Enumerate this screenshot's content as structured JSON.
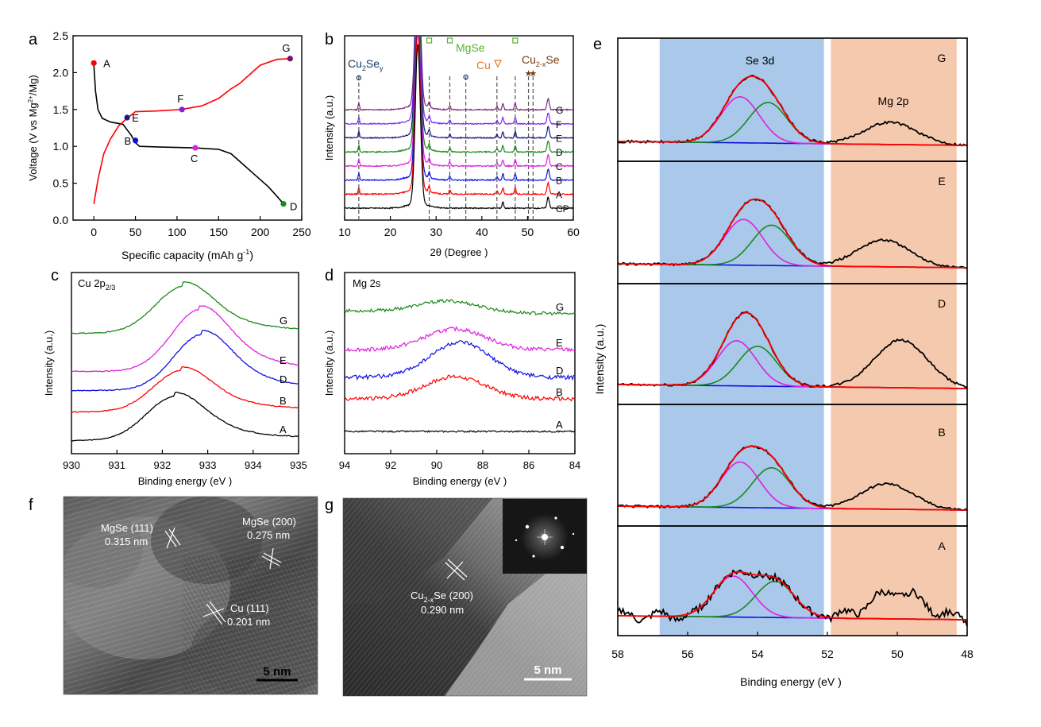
{
  "panels": {
    "a": {
      "letter": "a",
      "xlabel": "Specific capacity  (mAh g",
      "xlabel_sup": "-1",
      "xlabel_end": ")",
      "ylabel": "Voltage  (V vs Mg",
      "ylabel_sup": "2+",
      "ylabel_end": "/Mg)",
      "xticks": [
        "0",
        "50",
        "100",
        "150",
        "200",
        "250"
      ],
      "yticks": [
        "0.0",
        "0.5",
        "1.0",
        "1.5",
        "2.0",
        "2.5"
      ]
    },
    "b": {
      "letter": "b",
      "xlabel": "2θ (Degree )",
      "ylabel": "Intensity  (a.u.)",
      "xticks": [
        "10",
        "20",
        "30",
        "40",
        "50",
        "60"
      ],
      "label_cu2sey_main": "Cu",
      "label_cu2sey_sub1": "2",
      "label_cu2sey_mid": "Se",
      "label_cu2sey_sub2": "y",
      "label_mgse": "MgSe",
      "label_cu": "Cu",
      "label_cu2xse_main": "Cu",
      "label_cu2xse_sub": "2-x",
      "label_cu2xse_end": "Se",
      "trace_labels": [
        "G",
        "F",
        "E",
        "D",
        "C",
        "B",
        "A",
        "CP"
      ]
    },
    "c": {
      "letter": "c",
      "title_main": "Cu 2p",
      "title_sub": "2/3",
      "xlabel": "Binding energy (eV )",
      "ylabel": "Intensity  (a.u.)",
      "xticks": [
        "930",
        "931",
        "932",
        "933",
        "934",
        "935"
      ],
      "trace_labels": [
        "G",
        "E",
        "D",
        "B",
        "A"
      ]
    },
    "d": {
      "letter": "d",
      "title": "Mg 2s",
      "xlabel": "Binding energy (eV )",
      "ylabel": "Intensity  (a.u.)",
      "xticks": [
        "94",
        "92",
        "90",
        "88",
        "86",
        "84"
      ],
      "trace_labels": [
        "G",
        "E",
        "D",
        "B",
        "A"
      ]
    },
    "e": {
      "letter": "e",
      "xlabel": "Binding energy (eV )",
      "ylabel": "Intensity  (a.u.)",
      "xticks": [
        "58",
        "56",
        "54",
        "52",
        "50",
        "48"
      ],
      "region_se": "Se 3d",
      "region_mg": "Mg 2p",
      "subpanel_labels": [
        "G",
        "E",
        "D",
        "B",
        "A"
      ]
    },
    "f": {
      "letter": "f",
      "ann1_l1": "MgSe (111)",
      "ann1_l2": "0.315 nm",
      "ann2_l1": "MgSe (200)",
      "ann2_l2": "0.275 nm",
      "ann3_l1": "Cu (111)",
      "ann3_l2": "0.201 nm",
      "scale": "5 nm"
    },
    "g": {
      "letter": "g",
      "ann_main": "Cu",
      "ann_sub": "2-x",
      "ann_end": "Se (200)",
      "ann_l2": "0.290 nm",
      "scale": "5 nm"
    }
  },
  "chart_data": [
    {
      "panel": "a",
      "type": "line",
      "xlabel": "Specific capacity  (mAh g-1)",
      "ylabel": "Voltage  (V vs Mg2+/Mg)",
      "xlim": [
        -25,
        250
      ],
      "ylim": [
        0.0,
        2.5
      ],
      "series": [
        {
          "color": "#000000",
          "x": [
            0,
            2,
            5,
            10,
            20,
            35,
            45,
            50,
            55,
            80,
            120,
            150,
            165,
            180,
            195,
            210,
            222,
            228
          ],
          "y": [
            2.1,
            1.75,
            1.5,
            1.38,
            1.33,
            1.3,
            1.15,
            1.05,
            1.0,
            0.99,
            0.98,
            0.96,
            0.9,
            0.75,
            0.6,
            0.45,
            0.3,
            0.22
          ]
        },
        {
          "color": "#ff0000",
          "x": [
            0,
            5,
            12,
            20,
            30,
            40,
            50,
            75,
            105,
            130,
            150,
            165,
            175,
            190,
            200,
            220,
            236
          ],
          "y": [
            0.22,
            0.55,
            0.9,
            1.1,
            1.28,
            1.38,
            1.47,
            1.48,
            1.5,
            1.55,
            1.65,
            1.78,
            1.85,
            2.0,
            2.1,
            2.18,
            2.19
          ]
        }
      ],
      "points": [
        {
          "label": "A",
          "x": 0,
          "y": 2.13,
          "color": "#ff0000"
        },
        {
          "label": "B",
          "x": 50,
          "y": 1.08,
          "color": "#1010d0"
        },
        {
          "label": "C",
          "x": 122,
          "y": 0.98,
          "color": "#e020e0"
        },
        {
          "label": "D",
          "x": 228,
          "y": 0.22,
          "color": "#1a8a1a"
        },
        {
          "label": "E",
          "x": 40,
          "y": 1.39,
          "color": "#1a1a80"
        },
        {
          "label": "F",
          "x": 106,
          "y": 1.5,
          "color": "#8020e0"
        },
        {
          "label": "G",
          "x": 236,
          "y": 2.19,
          "color": "#6a1a6a"
        }
      ]
    },
    {
      "panel": "b",
      "type": "line",
      "xlabel": "2θ (Degree )",
      "ylabel": "Intensity  (a.u.)",
      "xlim": [
        10,
        60
      ],
      "series": [
        {
          "name": "G",
          "color": "#7a2a7a",
          "offset": 7
        },
        {
          "name": "F",
          "color": "#7a2af0",
          "offset": 6
        },
        {
          "name": "E",
          "color": "#1a1a80",
          "offset": 5
        },
        {
          "name": "D",
          "color": "#1a8a1a",
          "offset": 4
        },
        {
          "name": "C",
          "color": "#e020e0",
          "offset": 3
        },
        {
          "name": "B",
          "color": "#1010e0",
          "offset": 2
        },
        {
          "name": "A",
          "color": "#ff0000",
          "offset": 1
        },
        {
          "name": "CP",
          "color": "#000000",
          "offset": 0
        }
      ],
      "peaks": [
        13.1,
        26.0,
        28.5,
        33.0,
        36.5,
        43.3,
        44.6,
        47.3,
        50.2,
        51.2,
        54.5
      ],
      "reference_lines": [
        13.1,
        28.5,
        33.0,
        36.5,
        43.3,
        47.3,
        50.2,
        51.2
      ]
    },
    {
      "panel": "c",
      "type": "line",
      "xlim": [
        930,
        935
      ],
      "series": [
        {
          "name": "G",
          "color": "#1a8a1a",
          "center": 932.45
        },
        {
          "name": "E",
          "color": "#e020e0",
          "center": 932.8
        },
        {
          "name": "D",
          "color": "#1010e0",
          "center": 932.85
        },
        {
          "name": "B",
          "color": "#ff0000",
          "center": 932.4
        },
        {
          "name": "A",
          "color": "#000000",
          "center": 932.25
        }
      ]
    },
    {
      "panel": "d",
      "type": "line",
      "xlim": [
        94,
        84
      ],
      "series": [
        {
          "name": "G",
          "color": "#1a8a1a",
          "center": 89.5
        },
        {
          "name": "E",
          "color": "#e020e0",
          "center": 89.2
        },
        {
          "name": "D",
          "color": "#1010e0",
          "center": 89.0
        },
        {
          "name": "B",
          "color": "#ff0000",
          "center": 89.2
        },
        {
          "name": "A",
          "color": "#000000",
          "center": null
        }
      ]
    },
    {
      "panel": "e",
      "type": "line",
      "xlim": [
        58,
        48
      ],
      "shaded_regions": [
        {
          "name": "Se 3d",
          "from": 56.8,
          "to": 52.1,
          "color": "#a9c8ea"
        },
        {
          "name": "Mg 2p",
          "from": 51.9,
          "to": 48.3,
          "color": "#f5c9ae"
        }
      ],
      "subpanels": [
        {
          "name": "G",
          "se_peaks": [
            54.5,
            53.7
          ],
          "mg_peak": 50.2,
          "mg_height": 0.33
        },
        {
          "name": "E",
          "se_peaks": [
            54.4,
            53.6
          ],
          "mg_peak": 50.4,
          "mg_height": 0.4
        },
        {
          "name": "D",
          "se_peaks": [
            54.6,
            54.0
          ],
          "mg_peak": 49.9,
          "mg_height": 0.72
        },
        {
          "name": "B",
          "se_peaks": [
            54.5,
            53.6
          ],
          "mg_peak": 50.3,
          "mg_height": 0.38
        },
        {
          "name": "A",
          "se_peaks": [
            54.7,
            53.5
          ],
          "mg_peak": 50.0,
          "mg_height": 0.45
        }
      ],
      "series_colors": {
        "envelope": "#ff0000",
        "component1": "#e020e0",
        "component2": "#1a8a1a",
        "background": "#1010e0",
        "data": "#000000"
      }
    }
  ]
}
